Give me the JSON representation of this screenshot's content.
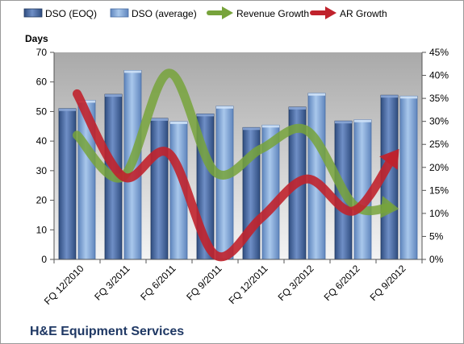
{
  "chart_data": {
    "type": "bar",
    "title": "H&E Equipment Services",
    "ylabel": "Days",
    "categories": [
      "FQ 12/2010",
      "FQ 3/2011",
      "FQ 6/2011",
      "FQ 9/2011",
      "FQ 12/2011",
      "FQ 3/2012",
      "FQ 6/2012",
      "FQ 9/2012"
    ],
    "ylim": [
      0,
      70
    ],
    "y2lim": [
      0,
      0.45
    ],
    "yticks": [
      "0",
      "10",
      "20",
      "30",
      "40",
      "50",
      "60",
      "70"
    ],
    "y2ticks": [
      "0%",
      "5%",
      "10%",
      "15%",
      "20%",
      "25%",
      "30%",
      "35%",
      "40%",
      "45%"
    ],
    "legend_position": "top",
    "grid": false,
    "bar_series": [
      {
        "name": "DSO (EOQ)",
        "color": "#4a6aa4",
        "values": [
          51,
          55.8,
          47.7,
          49.2,
          44.6,
          51.5,
          46.8,
          55.5
        ]
      },
      {
        "name": "DSO (average)",
        "color": "#8db4e2",
        "values": [
          53.8,
          63.9,
          46.6,
          51.8,
          45.4,
          56.2,
          47.2,
          55.2
        ]
      }
    ],
    "line_series": [
      {
        "name": "Revenue Growth",
        "color": "#77a33b",
        "axis": "secondary",
        "values": [
          0.27,
          0.18,
          0.405,
          0.19,
          0.24,
          0.28,
          0.12,
          0.11
        ]
      },
      {
        "name": "AR Growth",
        "color": "#c0222c",
        "axis": "secondary",
        "values": [
          0.36,
          0.18,
          0.23,
          0.01,
          0.09,
          0.175,
          0.105,
          0.24
        ]
      }
    ]
  }
}
